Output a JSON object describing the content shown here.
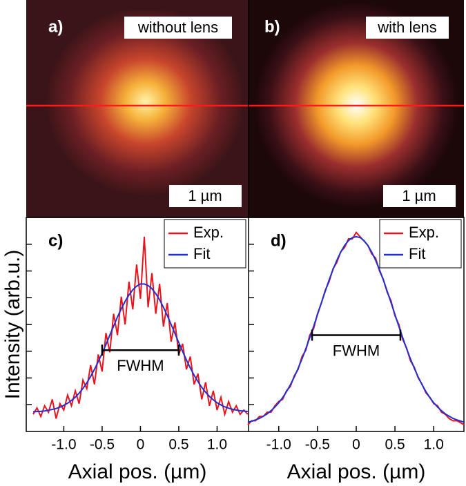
{
  "images": [
    {
      "label": "a)",
      "caption": "without lens",
      "scale_bar": "1 µm"
    },
    {
      "label": "b)",
      "caption": "with lens",
      "scale_bar": "1 µm"
    }
  ],
  "chart_data": [
    {
      "type": "line",
      "panel_label": "c)",
      "xlabel": "Axial pos. (µm)",
      "ylabel": "Intensity (arb.u.)",
      "x": [
        -1.4,
        -1.35,
        -1.3,
        -1.25,
        -1.2,
        -1.15,
        -1.1,
        -1.05,
        -1,
        -0.95,
        -0.9,
        -0.85,
        -0.8,
        -0.75,
        -0.7,
        -0.65,
        -0.6,
        -0.55,
        -0.5,
        -0.45,
        -0.4,
        -0.35,
        -0.3,
        -0.25,
        -0.2,
        -0.15,
        -0.1,
        -0.05,
        0,
        0.05,
        0.1,
        0.15,
        0.2,
        0.25,
        0.3,
        0.35,
        0.4,
        0.45,
        0.5,
        0.55,
        0.6,
        0.65,
        0.7,
        0.75,
        0.8,
        0.85,
        0.9,
        0.95,
        1,
        1.05,
        1.1,
        1.15,
        1.2,
        1.25,
        1.3,
        1.35,
        1.4
      ],
      "series": [
        {
          "name": "Exp.",
          "color": "#e8141c",
          "values": [
            0.08,
            0.11,
            0.07,
            0.12,
            0.09,
            0.15,
            0.06,
            0.13,
            0.1,
            0.17,
            0.12,
            0.19,
            0.13,
            0.24,
            0.2,
            0.31,
            0.22,
            0.36,
            0.28,
            0.46,
            0.37,
            0.55,
            0.45,
            0.63,
            0.5,
            0.7,
            0.57,
            0.78,
            0.62,
            0.91,
            0.58,
            0.74,
            0.55,
            0.69,
            0.49,
            0.6,
            0.42,
            0.51,
            0.36,
            0.41,
            0.29,
            0.35,
            0.22,
            0.27,
            0.15,
            0.23,
            0.12,
            0.19,
            0.1,
            0.16,
            0.08,
            0.14,
            0.09,
            0.12,
            0.08,
            0.1,
            0.08
          ]
        },
        {
          "name": "Fit",
          "color": "#1f2fd4",
          "values": [
            0.092,
            0.093,
            0.094,
            0.096,
            0.099,
            0.103,
            0.107,
            0.114,
            0.122,
            0.132,
            0.145,
            0.16,
            0.179,
            0.201,
            0.227,
            0.257,
            0.29,
            0.327,
            0.365,
            0.406,
            0.45,
            0.492,
            0.535,
            0.573,
            0.608,
            0.638,
            0.662,
            0.679,
            0.689,
            0.689,
            0.682,
            0.667,
            0.644,
            0.615,
            0.58,
            0.542,
            0.5,
            0.458,
            0.415,
            0.374,
            0.334,
            0.297,
            0.263,
            0.233,
            0.206,
            0.183,
            0.164,
            0.148,
            0.134,
            0.124,
            0.115,
            0.109,
            0.104,
            0.1,
            0.097,
            0.095,
            0.093
          ]
        }
      ],
      "fwhm": {
        "label": "FWHM",
        "x": [
          -0.5,
          0.5
        ],
        "y": 0.38
      },
      "xlim": [
        -1.49,
        1.41
      ],
      "ylim": [
        0,
        1
      ],
      "xticks": [
        {
          "value": -1,
          "label": "-1.0"
        },
        -0.5,
        0,
        0.5,
        {
          "value": 1,
          "label": "1.0"
        }
      ],
      "yticks": [
        0.125,
        0.25,
        0.375,
        0.5,
        0.625,
        0.75,
        0.875
      ],
      "legend": "upper right"
    },
    {
      "type": "line",
      "panel_label": "d)",
      "xlabel": "Axial pos. (µm)",
      "x": [
        -1.4,
        -1.35,
        -1.3,
        -1.25,
        -1.2,
        -1.15,
        -1.1,
        -1.05,
        -1,
        -0.95,
        -0.9,
        -0.85,
        -0.8,
        -0.75,
        -0.7,
        -0.65,
        -0.6,
        -0.55,
        -0.5,
        -0.45,
        -0.4,
        -0.35,
        -0.3,
        -0.25,
        -0.2,
        -0.15,
        -0.1,
        -0.05,
        0,
        0.05,
        0.1,
        0.15,
        0.2,
        0.25,
        0.3,
        0.35,
        0.4,
        0.45,
        0.5,
        0.55,
        0.6,
        0.65,
        0.7,
        0.75,
        0.8,
        0.85,
        0.9,
        0.95,
        1,
        1.05,
        1.1,
        1.15,
        1.2,
        1.25,
        1.3,
        1.35,
        1.4
      ],
      "series": [
        {
          "name": "Exp.",
          "color": "#e8141c",
          "values": [
            0.03,
            0.05,
            0.05,
            0.07,
            0.07,
            0.09,
            0.09,
            0.12,
            0.14,
            0.15,
            0.19,
            0.21,
            0.26,
            0.29,
            0.35,
            0.38,
            0.45,
            0.48,
            0.55,
            0.6,
            0.66,
            0.7,
            0.76,
            0.79,
            0.84,
            0.86,
            0.9,
            0.9,
            0.93,
            0.91,
            0.89,
            0.87,
            0.83,
            0.81,
            0.75,
            0.71,
            0.65,
            0.61,
            0.54,
            0.5,
            0.43,
            0.39,
            0.33,
            0.3,
            0.25,
            0.22,
            0.18,
            0.16,
            0.13,
            0.12,
            0.09,
            0.08,
            0.06,
            0.05,
            0.05,
            0.04,
            0.03
          ]
        },
        {
          "name": "Fit",
          "color": "#1f2fd4",
          "values": [
            0.043,
            0.048,
            0.054,
            0.061,
            0.071,
            0.082,
            0.097,
            0.114,
            0.134,
            0.158,
            0.186,
            0.218,
            0.254,
            0.295,
            0.339,
            0.387,
            0.438,
            0.491,
            0.546,
            0.601,
            0.655,
            0.708,
            0.756,
            0.8,
            0.838,
            0.869,
            0.892,
            0.906,
            0.91,
            0.906,
            0.892,
            0.869,
            0.838,
            0.8,
            0.756,
            0.708,
            0.655,
            0.601,
            0.546,
            0.491,
            0.438,
            0.387,
            0.339,
            0.295,
            0.254,
            0.218,
            0.186,
            0.158,
            0.134,
            0.114,
            0.097,
            0.082,
            0.071,
            0.061,
            0.054,
            0.048,
            0.043
          ]
        }
      ],
      "fwhm": {
        "label": "FWHM",
        "x": [
          -0.57,
          0.57
        ],
        "y": 0.45
      },
      "xlim": [
        -1.39,
        1.39
      ],
      "ylim": [
        0,
        1
      ],
      "xticks": [
        {
          "value": -1,
          "label": "-1.0"
        },
        -0.5,
        0,
        0.5,
        {
          "value": 1,
          "label": "1.0"
        }
      ],
      "yticks": [
        0.125,
        0.25,
        0.375,
        0.5,
        0.625,
        0.75,
        0.875
      ],
      "legend": "upper right"
    }
  ]
}
